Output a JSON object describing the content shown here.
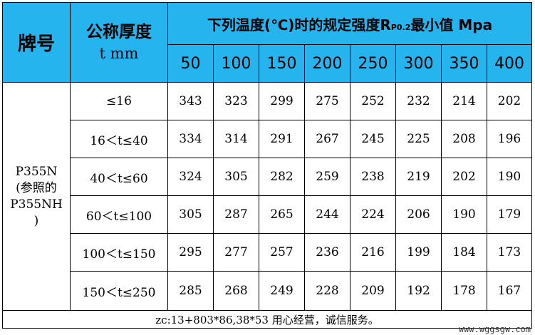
{
  "headers": {
    "grade": "牌号",
    "thickness_title": "公称厚度",
    "thickness_unit": "t  mm",
    "temp_title_pre": "下列温度(℃)时的规定强度R",
    "temp_title_sub": "P0.2",
    "temp_title_post": "最小值 Mpa",
    "temperatures": [
      "50",
      "100",
      "150",
      "200",
      "250",
      "300",
      "350",
      "400"
    ]
  },
  "grade": {
    "line1": "P355N",
    "line2": "(参照的",
    "line3": "P355NH",
    "line4": ")"
  },
  "rows": [
    {
      "range": "≤16",
      "values": [
        "343",
        "323",
        "299",
        "275",
        "252",
        "232",
        "214",
        "202"
      ]
    },
    {
      "range": "16＜t≤40",
      "values": [
        "334",
        "314",
        "291",
        "267",
        "245",
        "225",
        "208",
        "196"
      ]
    },
    {
      "range": "40＜t≤60",
      "values": [
        "324",
        "305",
        "282",
        "259",
        "238",
        "219",
        "202",
        "190"
      ]
    },
    {
      "range": "60＜t≤100",
      "values": [
        "305",
        "287",
        "265",
        "244",
        "224",
        "206",
        "190",
        "179"
      ]
    },
    {
      "range": "100＜t≤150",
      "values": [
        "295",
        "277",
        "257",
        "236",
        "216",
        "199",
        "184",
        "173"
      ]
    },
    {
      "range": "150＜t≤250",
      "values": [
        "285",
        "268",
        "249",
        "228",
        "209",
        "192",
        "178",
        "167"
      ]
    }
  ],
  "footer": "zc:13+803*86,38*53 用心经营，诚信服务。",
  "watermark": "www.wggsgw.com"
}
